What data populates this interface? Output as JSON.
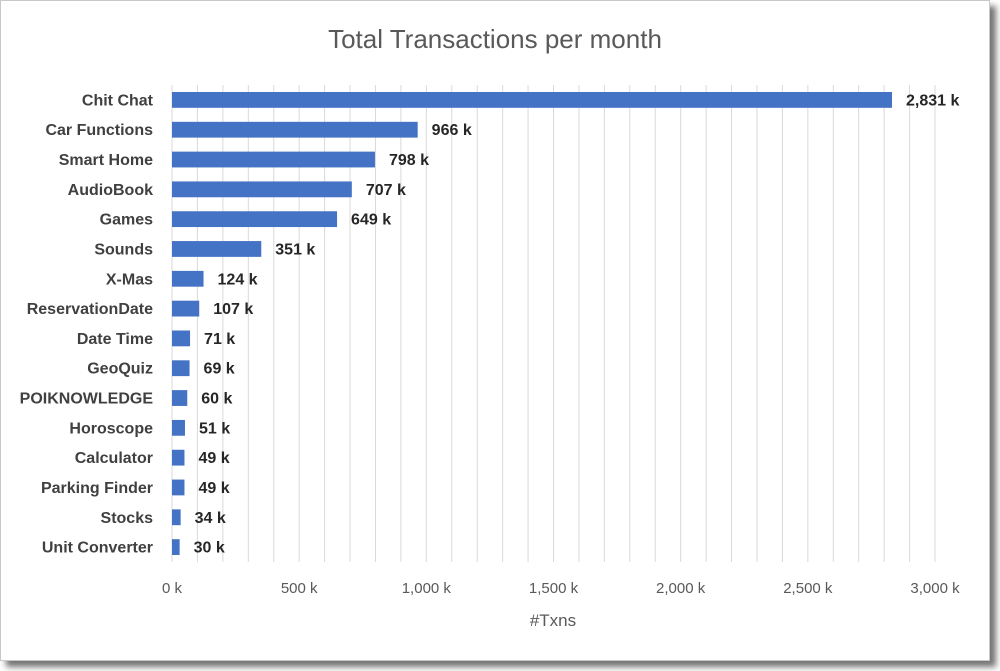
{
  "chart_data": {
    "type": "bar",
    "orientation": "horizontal",
    "title": "Total Transactions per month",
    "xlabel": "#Txns",
    "ylabel": "",
    "xlim": [
      0,
      3000
    ],
    "x_ticks": [
      0,
      500,
      1000,
      1500,
      2000,
      2500,
      3000
    ],
    "x_tick_labels": [
      "0 k",
      "500 k",
      "1,000 k",
      "1,500 k",
      "2,000 k",
      "2,500 k",
      "3,000 k"
    ],
    "grid": "vertical",
    "bar_color": "#4472c4",
    "categories": [
      "Chit Chat",
      "Car Functions",
      "Smart Home",
      "AudioBook",
      "Games",
      "Sounds",
      "X-Mas",
      "ReservationDate",
      "Date Time",
      "GeoQuiz",
      "POIKNOWLEDGE",
      "Horoscope",
      "Calculator",
      "Parking Finder",
      "Stocks",
      "Unit Converter"
    ],
    "values": [
      2831,
      966,
      798,
      707,
      649,
      351,
      124,
      107,
      71,
      69,
      60,
      51,
      49,
      49,
      34,
      30
    ],
    "data_labels": [
      "2,831 k",
      "966 k",
      "798 k",
      "707 k",
      "649 k",
      "351 k",
      "124 k",
      "107 k",
      "71 k",
      "69 k",
      "60 k",
      "51 k",
      "49 k",
      "49 k",
      "34 k",
      "30 k"
    ]
  }
}
